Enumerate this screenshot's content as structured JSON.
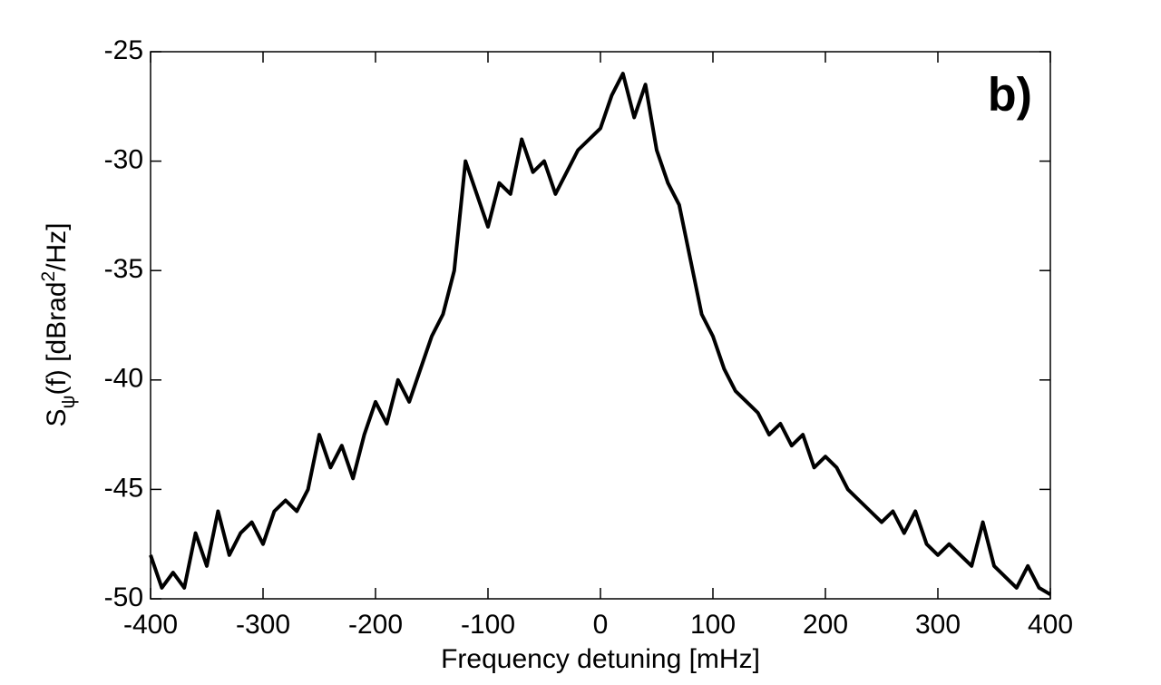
{
  "chart_data": {
    "type": "line",
    "annotation": "b)",
    "xlabel": "Frequency detuning [mHz]",
    "ylabel": [
      "S",
      "ψ",
      "(f) [dBrad",
      "2",
      "/Hz]"
    ],
    "x": [
      -400,
      -390,
      -380,
      -370,
      -360,
      -350,
      -340,
      -330,
      -320,
      -310,
      -300,
      -290,
      -280,
      -270,
      -260,
      -250,
      -240,
      -230,
      -220,
      -210,
      -200,
      -190,
      -180,
      -170,
      -160,
      -150,
      -140,
      -130,
      -120,
      -110,
      -100,
      -90,
      -80,
      -70,
      -60,
      -50,
      -40,
      -30,
      -20,
      -10,
      0,
      10,
      20,
      30,
      40,
      50,
      60,
      70,
      80,
      90,
      100,
      110,
      120,
      130,
      140,
      150,
      160,
      170,
      180,
      190,
      200,
      210,
      220,
      230,
      240,
      250,
      260,
      270,
      280,
      290,
      300,
      310,
      320,
      330,
      340,
      350,
      360,
      370,
      380,
      390,
      400
    ],
    "series": [
      {
        "color": "#000000",
        "values": [
          -48,
          -49.5,
          -48.8,
          -49.5,
          -47,
          -48.5,
          -46,
          -48,
          -47,
          -46.5,
          -47.5,
          -46,
          -45.5,
          -46,
          -45,
          -42.5,
          -44,
          -43,
          -44.5,
          -42.5,
          -41,
          -42,
          -40,
          -41,
          -39.5,
          -38,
          -37,
          -35,
          -30,
          -31.5,
          -33,
          -31,
          -31.5,
          -29,
          -30.5,
          -30,
          -31.5,
          -30.5,
          -29.5,
          -29,
          -28.5,
          -27,
          -26,
          -28,
          -26.5,
          -29.5,
          -31,
          -32,
          -34.5,
          -37,
          -38,
          -39.5,
          -40.5,
          -41,
          -41.5,
          -42.5,
          -42,
          -43,
          -42.5,
          -44,
          -43.5,
          -44,
          -45,
          -45.5,
          -46,
          -46.5,
          -46,
          -47,
          -46,
          -47.5,
          -48,
          -47.5,
          -48,
          -48.5,
          -46.5,
          -48.5,
          -49,
          -49.5,
          -48.5,
          -49.5,
          -49.8
        ]
      }
    ],
    "xlim": [
      -400,
      400
    ],
    "xticks": [
      -400,
      -300,
      -200,
      -100,
      0,
      100,
      200,
      300,
      400
    ],
    "ylim": [
      -50,
      -25
    ],
    "yticks": [
      -50,
      -45,
      -40,
      -35,
      -30,
      -25
    ]
  }
}
